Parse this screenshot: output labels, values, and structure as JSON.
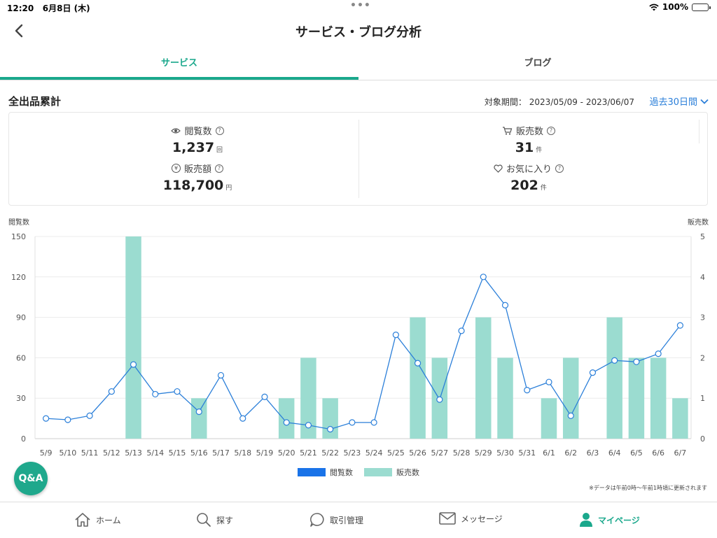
{
  "status": {
    "time": "12:20",
    "date": "6月8日 (木)",
    "battery": "100%",
    "battery_level": 1.0
  },
  "nav": {
    "title": "サービス・ブログ分析"
  },
  "tabs": [
    {
      "label": "サービス",
      "active": true
    },
    {
      "label": "ブログ",
      "active": false
    }
  ],
  "summary": {
    "section_title": "全出品累計",
    "period_label": "対象期間：",
    "period_range": "2023/05/09 - 2023/06/07",
    "period_select": "過去30日間",
    "views": {
      "label": "閲覧数",
      "value": "1,237",
      "unit": "回"
    },
    "revenue": {
      "label": "販売額",
      "value": "118,700",
      "unit": "円"
    },
    "sales": {
      "label": "販売数",
      "value": "31",
      "unit": "件"
    },
    "favorites": {
      "label": "お気に入り",
      "value": "202",
      "unit": "件"
    }
  },
  "chart_data": {
    "type": "bar",
    "categories": [
      "5/9",
      "5/10",
      "5/11",
      "5/12",
      "5/13",
      "5/14",
      "5/15",
      "5/16",
      "5/17",
      "5/18",
      "5/19",
      "5/20",
      "5/21",
      "5/22",
      "5/23",
      "5/24",
      "5/25",
      "5/26",
      "5/27",
      "5/28",
      "5/29",
      "5/30",
      "5/31",
      "6/1",
      "6/2",
      "6/3",
      "6/4",
      "6/5",
      "6/6",
      "6/7"
    ],
    "series": [
      {
        "name": "閲覧数",
        "type": "line",
        "axis": "left",
        "color": "#2b7fd9",
        "values": [
          15,
          14,
          17,
          35,
          55,
          33,
          35,
          20,
          47,
          15,
          31,
          12,
          10,
          7,
          12,
          12,
          77,
          56,
          29,
          80,
          120,
          99,
          36,
          42,
          17,
          49,
          58,
          57,
          63,
          84
        ]
      },
      {
        "name": "販売数",
        "type": "bar",
        "axis": "right",
        "color": "#9bdcd0",
        "values": [
          0,
          0,
          0,
          0,
          5,
          0,
          0,
          1,
          0,
          0,
          0,
          1,
          2,
          1,
          0,
          0,
          0,
          3,
          2,
          0,
          3,
          2,
          0,
          1,
          2,
          0,
          3,
          2,
          2,
          1
        ]
      }
    ],
    "left_axis": {
      "title": "閲覧数",
      "ticks": [
        0,
        30,
        60,
        90,
        120,
        150
      ],
      "range": [
        0,
        150
      ]
    },
    "right_axis": {
      "title": "販売数",
      "ticks": [
        0,
        1,
        2,
        3,
        4,
        5
      ],
      "range": [
        0,
        5
      ]
    },
    "legend": [
      {
        "label": "閲覧数",
        "color": "#1a73e8"
      },
      {
        "label": "販売数",
        "color": "#9bdcd0"
      }
    ],
    "legend_position": "bottom",
    "grid": true
  },
  "note": "※データは午前0時〜午前1時頃に更新されます",
  "qa_button": "Q&A",
  "bottom_nav": [
    {
      "label": "ホーム",
      "icon": "home-icon"
    },
    {
      "label": "探す",
      "icon": "search-icon"
    },
    {
      "label": "取引管理",
      "icon": "chat-bubble-icon"
    },
    {
      "label": "メッセージ",
      "icon": "mail-icon"
    },
    {
      "label": "マイページ",
      "icon": "person-icon",
      "active": true
    }
  ]
}
